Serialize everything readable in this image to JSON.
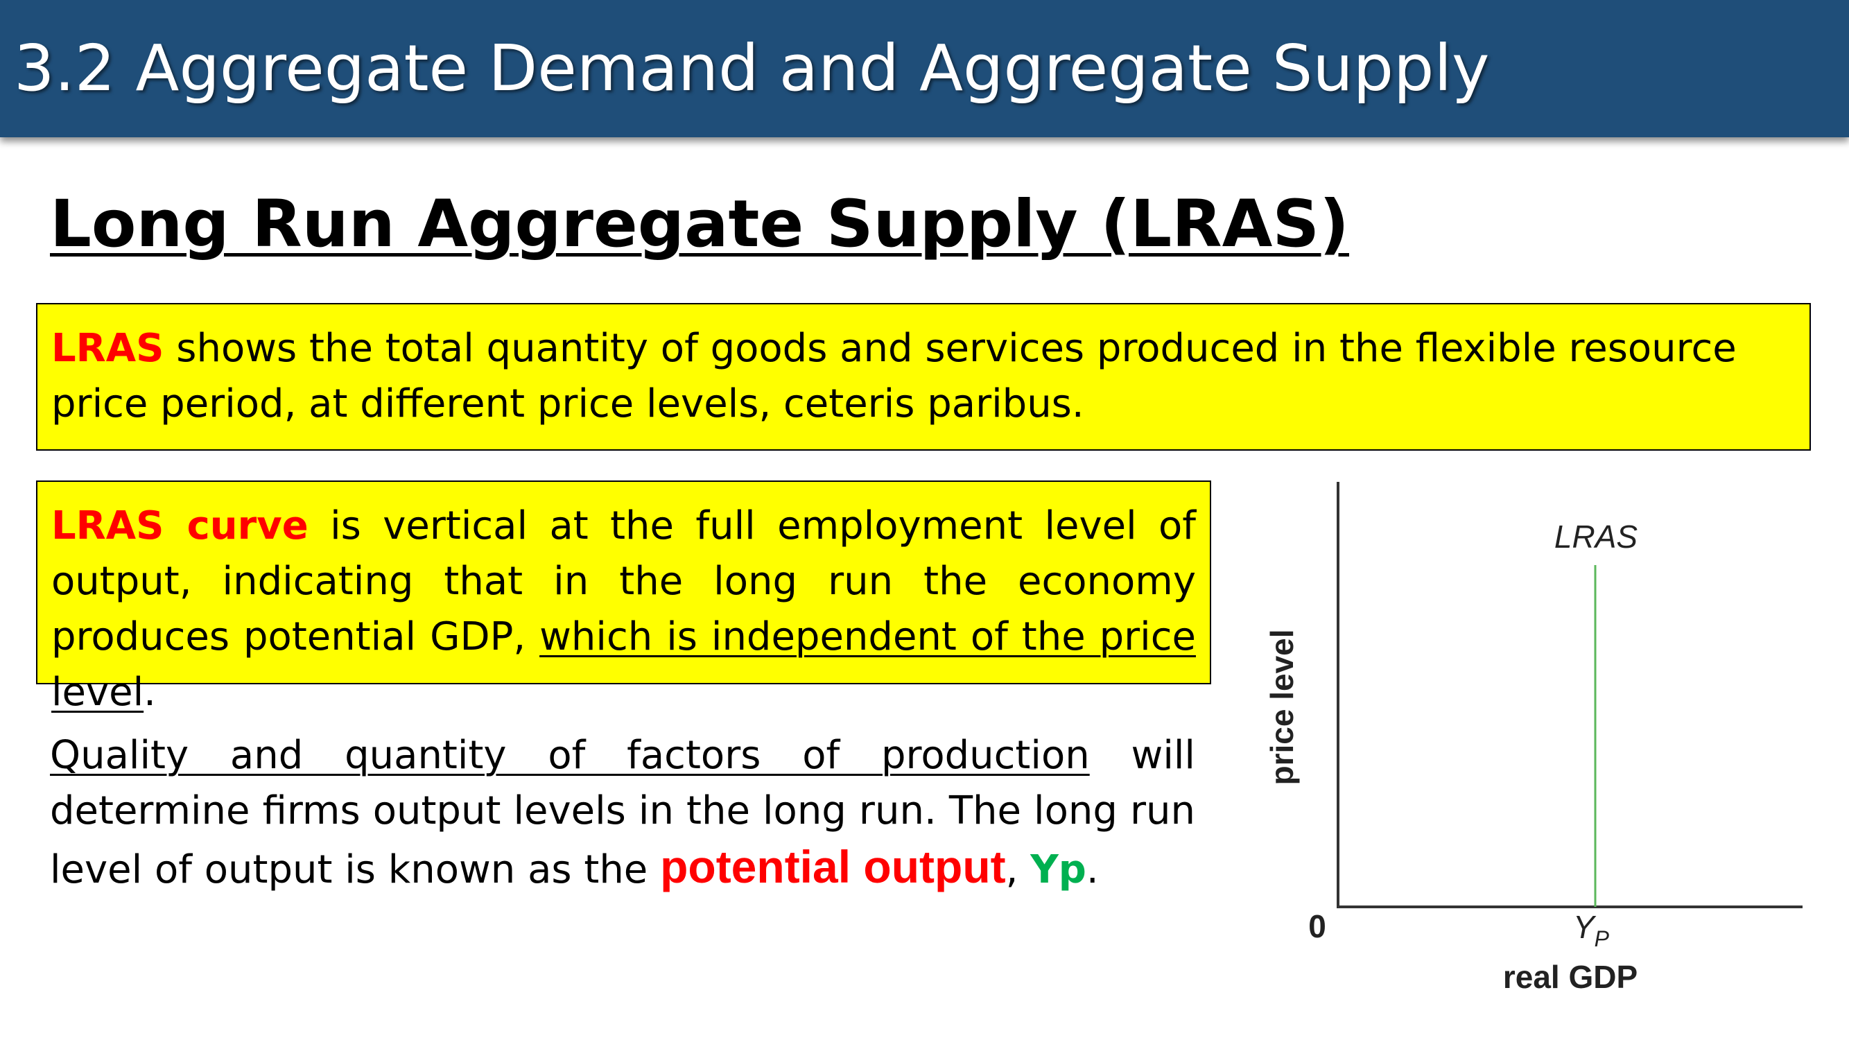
{
  "header": {
    "title": "3.2 Aggregate Demand and Aggregate Supply",
    "bar_color": "#1f4e79"
  },
  "slide": {
    "heading": "Long Run Aggregate Supply (LRAS)",
    "box1": {
      "term": "LRAS",
      "text": " shows the total quantity of goods and services produced in the flexible resource price period, at different price levels, ceteris paribus."
    },
    "box2": {
      "term": "LRAS curve",
      "text_a": " is vertical at the full employment level of output, indicating that in the long run the economy produces potential GDP, ",
      "underlined": "which is independent of the price level",
      "text_b": "."
    },
    "paragraph": {
      "underlined": "Quality and quantity of factors of production",
      "text_a": " will determine firms output levels in the long run. The long run level of output is known as the ",
      "emphasis": "potential output",
      "comma": ", ",
      "symbol": "Yp",
      "period": "."
    },
    "highlight_color": "#ffff00",
    "accent_red": "#ff0000",
    "accent_green": "#00b050"
  },
  "chart_data": {
    "type": "line",
    "curve_label": "LRAS",
    "ylabel": "price level",
    "xlabel": "real GDP",
    "origin_label": "0",
    "x_tick_label": "Y",
    "x_tick_subscript": "P",
    "series": [
      {
        "name": "LRAS",
        "x": [
          "Yp",
          "Yp"
        ],
        "y": [
          "low",
          "high"
        ],
        "color": "#5cb85c"
      }
    ]
  }
}
